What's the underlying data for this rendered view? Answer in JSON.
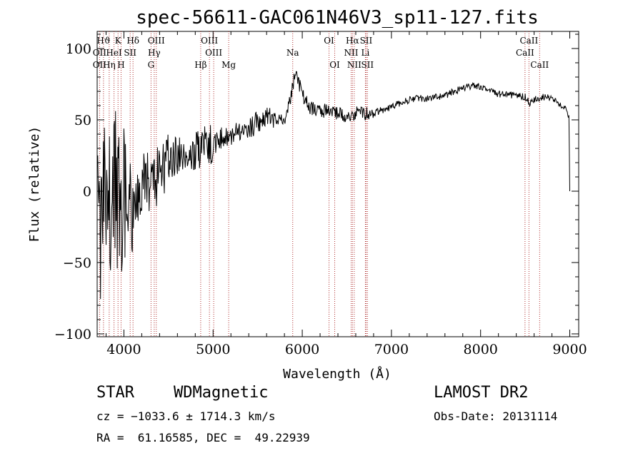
{
  "chart_data": {
    "type": "line",
    "title": "spec-56611-GAC061N46V3_sp11-127.fits",
    "xlabel": "Wavelength (Å)",
    "ylabel": "Flux (relative)",
    "xlim": [
      3700,
      9100
    ],
    "ylim": [
      -102,
      112
    ],
    "x_ticks": [
      4000,
      5000,
      6000,
      7000,
      8000,
      9000
    ],
    "x_tick_labels": [
      "4000",
      "5000",
      "6000",
      "7000",
      "8000",
      "9000"
    ],
    "y_ticks": [
      -100,
      -50,
      0,
      50,
      100
    ],
    "y_tick_labels": [
      "−100",
      "−50",
      "0",
      "50",
      "100"
    ],
    "grid": false,
    "series": [
      {
        "color": "#000000",
        "x": [
          3700,
          3750,
          3800,
          3850,
          3900,
          3950,
          4000,
          4100,
          4200,
          4300,
          4400,
          4500,
          4600,
          4700,
          4800,
          4900,
          5000,
          5100,
          5200,
          5300,
          5400,
          5500,
          5600,
          5700,
          5800,
          5850,
          5900,
          5920,
          5950,
          6000,
          6050,
          6100,
          6200,
          6300,
          6400,
          6500,
          6600,
          6700,
          6800,
          6900,
          7000,
          7100,
          7200,
          7300,
          7400,
          7500,
          7600,
          7700,
          7800,
          7900,
          8000,
          8100,
          8200,
          8300,
          8400,
          8500,
          8550,
          8600,
          8700,
          8800,
          8900,
          8950,
          8990,
          9000
        ],
        "y": [
          -10,
          -35,
          10,
          -5,
          5,
          -20,
          10,
          -10,
          5,
          8,
          12,
          20,
          25,
          28,
          28,
          32,
          33,
          38,
          40,
          43,
          45,
          48,
          52,
          52,
          50,
          60,
          75,
          85,
          78,
          68,
          62,
          58,
          56,
          57,
          55,
          53,
          55,
          54,
          55,
          57,
          59,
          62,
          64,
          65,
          65,
          66,
          67,
          70,
          72,
          74,
          73,
          70,
          68,
          68,
          67,
          66,
          62,
          64,
          66,
          65,
          60,
          58,
          52,
          0
        ]
      }
    ],
    "spectral_lines": [
      {
        "label": "Hϑ",
        "x": 3771,
        "row": 0
      },
      {
        "label": "K",
        "x": 3934,
        "row": 0
      },
      {
        "label": "Hδ",
        "x": 4102,
        "row": 0
      },
      {
        "label": "OIII",
        "x": 4363,
        "row": 0
      },
      {
        "label": "OIII",
        "x": 4959,
        "row": 0
      },
      {
        "label": "OI",
        "x": 6300,
        "row": 0
      },
      {
        "label": "Hα",
        "x": 6563,
        "row": 0
      },
      {
        "label": "SII",
        "x": 6716,
        "row": 0
      },
      {
        "label": "CaII",
        "x": 8542,
        "row": 0
      },
      {
        "label": "OII",
        "x": 3727,
        "row": 1
      },
      {
        "label": "HeI",
        "x": 3889,
        "row": 1
      },
      {
        "label": "SII",
        "x": 4070,
        "row": 1
      },
      {
        "label": "Hγ",
        "x": 4340,
        "row": 1
      },
      {
        "label": "OIII",
        "x": 5007,
        "row": 1
      },
      {
        "label": "Na",
        "x": 5893,
        "row": 1
      },
      {
        "label": "NII",
        "x": 6548,
        "row": 1
      },
      {
        "label": "Li",
        "x": 6708,
        "row": 1
      },
      {
        "label": "CaII",
        "x": 8498,
        "row": 1
      },
      {
        "label": "OII",
        "x": 3727,
        "row": 2
      },
      {
        "label": "Hη",
        "x": 3835,
        "row": 2
      },
      {
        "label": "H",
        "x": 3968,
        "row": 2
      },
      {
        "label": "G",
        "x": 4304,
        "row": 2
      },
      {
        "label": "Hβ",
        "x": 4861,
        "row": 2
      },
      {
        "label": "Mg",
        "x": 5175,
        "row": 2
      },
      {
        "label": "OI",
        "x": 6364,
        "row": 2
      },
      {
        "label": "NII",
        "x": 6583,
        "row": 2
      },
      {
        "label": "SII",
        "x": 6731,
        "row": 2
      },
      {
        "label": "CaII",
        "x": 8662,
        "row": 2
      }
    ]
  },
  "info": {
    "object_type": "STAR",
    "subclass": "WDMagnetic",
    "survey": "LAMOST DR2",
    "cz": "cz = −1033.6 ± 1714.3 km/s",
    "obs_date": "Obs-Date: 20131114",
    "radec": "RA =  61.16585, DEC =  49.22939"
  }
}
